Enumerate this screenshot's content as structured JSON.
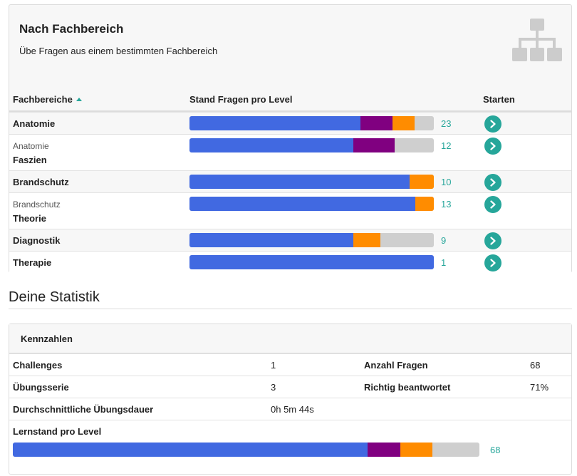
{
  "colors": {
    "level1": "#4169e1",
    "level2": "#800080",
    "level3": "#ff8c00",
    "rest": "#cfcfcf",
    "accent": "#26a69a"
  },
  "fach": {
    "title": "Nach Fachbereich",
    "subtitle": "Übe Fragen aus einem bestimmten Fachbereich",
    "icon": "hierarchy-icon",
    "columns": {
      "fachbereiche": "Fachbereiche",
      "stand": "Stand Fragen pro Level",
      "starten": "Starten"
    },
    "rows": [
      {
        "parent": "",
        "name": "Anatomie",
        "count": "23",
        "levels": [
          0.7,
          0.13,
          0.09
        ]
      },
      {
        "parent": "Anatomie",
        "name": "Faszien",
        "count": "12",
        "levels": [
          0.67,
          0.17,
          0.0
        ]
      },
      {
        "parent": "",
        "name": "Brandschutz",
        "count": "10",
        "levels": [
          0.9,
          0.0,
          0.1
        ]
      },
      {
        "parent": "Brandschutz",
        "name": "Theorie",
        "count": "13",
        "levels": [
          0.925,
          0.0,
          0.075
        ]
      },
      {
        "parent": "",
        "name": "Diagnostik",
        "count": "9",
        "levels": [
          0.67,
          0.0,
          0.11
        ]
      },
      {
        "parent": "",
        "name": "Therapie",
        "count": "1",
        "levels": [
          1.0,
          0.0,
          0.0
        ]
      }
    ]
  },
  "stats": {
    "title": "Deine Statistik",
    "kennzahlen_title": "Kennzahlen",
    "challenges_label": "Challenges",
    "challenges_value": "1",
    "anzahl_label": "Anzahl Fragen",
    "anzahl_value": "68",
    "uebungsserie_label": "Übungsserie",
    "uebungsserie_value": "3",
    "richtig_label": "Richtig beantwortet",
    "richtig_value": "71%",
    "dauer_label": "Durchschnittliche Übungsdauer",
    "dauer_value": "0h 5m 44s",
    "lernstand_label": "Lernstand pro Level",
    "lernstand_count": "68",
    "lernstand_levels": [
      0.76,
      0.07,
      0.07
    ]
  }
}
